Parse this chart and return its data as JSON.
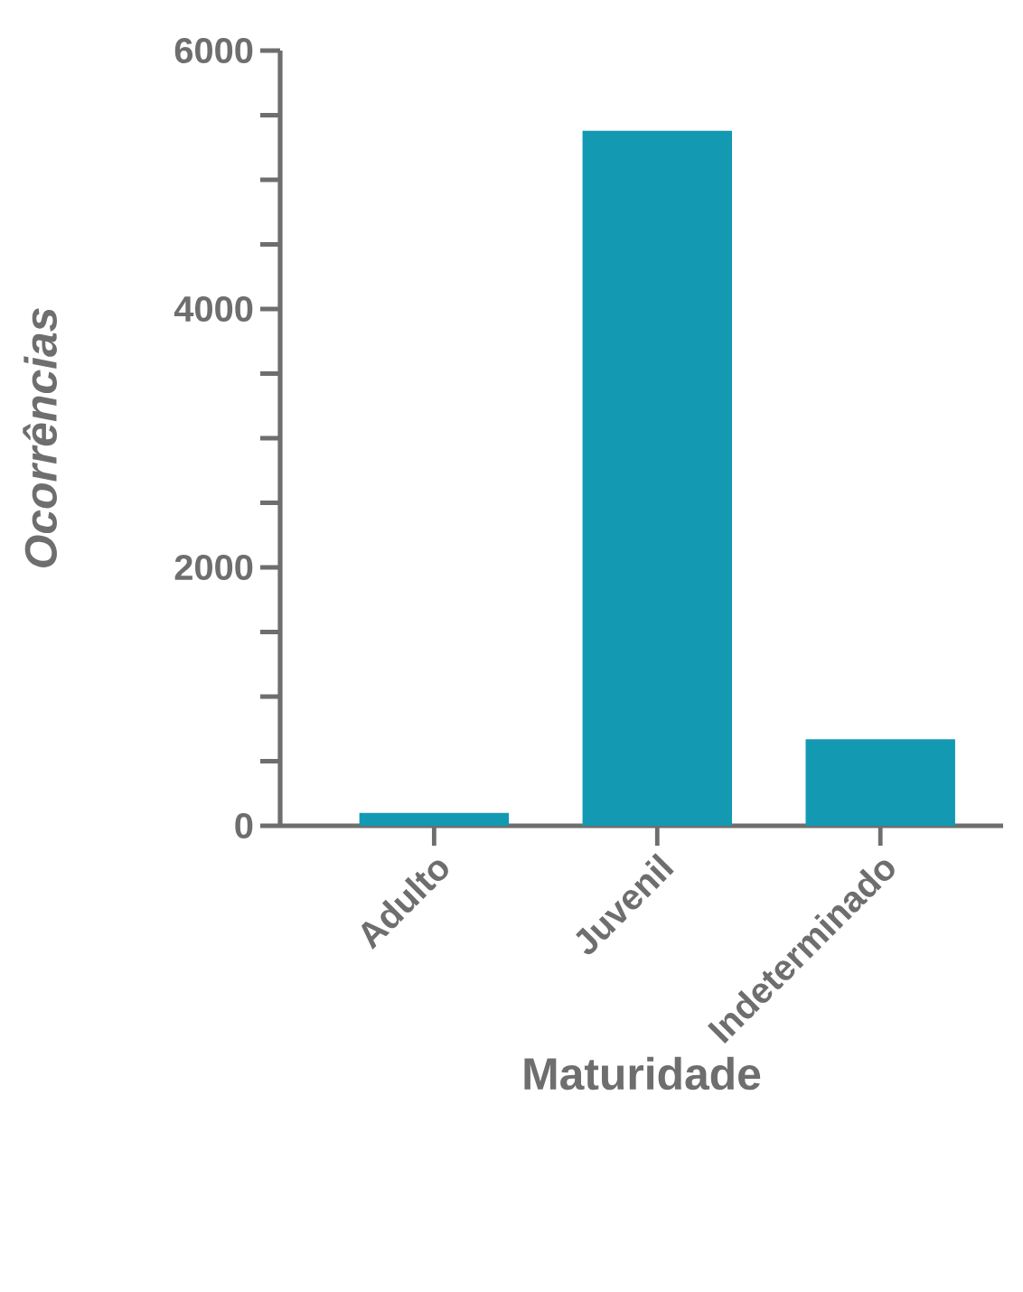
{
  "chart_data": {
    "type": "bar",
    "xlabel": "Maturidade",
    "ylabel": "Ocorrências",
    "categories": [
      "Adulto",
      "Juvenil",
      "Indeterminado"
    ],
    "values": [
      100,
      5380,
      670
    ],
    "color": "#1499b3",
    "ylim": [
      0,
      6000
    ],
    "yticks": [
      0,
      {
        "value": 500,
        "label": null
      },
      {
        "value": 1000,
        "label": null
      },
      {
        "value": 1500,
        "label": null
      },
      2000,
      {
        "value": 2500,
        "label": null
      },
      {
        "value": 3000,
        "label": null
      },
      {
        "value": 3500,
        "label": null
      },
      4000,
      {
        "value": 4500,
        "label": null
      },
      {
        "value": 5000,
        "label": null
      },
      {
        "value": 5500,
        "label": null
      },
      6000
    ],
    "grid": false
  }
}
